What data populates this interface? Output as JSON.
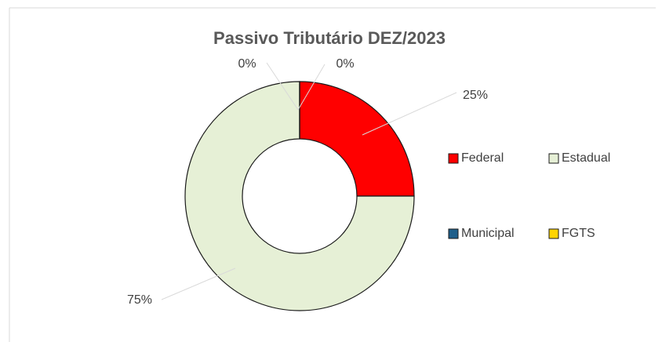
{
  "chart_data": {
    "type": "donut",
    "title": "Passivo Tributário DEZ/2023",
    "categories": [
      "Federal",
      "Estadual",
      "Municipal",
      "FGTS"
    ],
    "values": [
      25,
      75,
      0,
      0
    ],
    "value_labels": [
      "25%",
      "75%",
      "0%",
      "0%"
    ],
    "colors": [
      "#ff0000",
      "#e6f0d6",
      "#1f5f8b",
      "#ffd400"
    ],
    "legend": "right"
  }
}
